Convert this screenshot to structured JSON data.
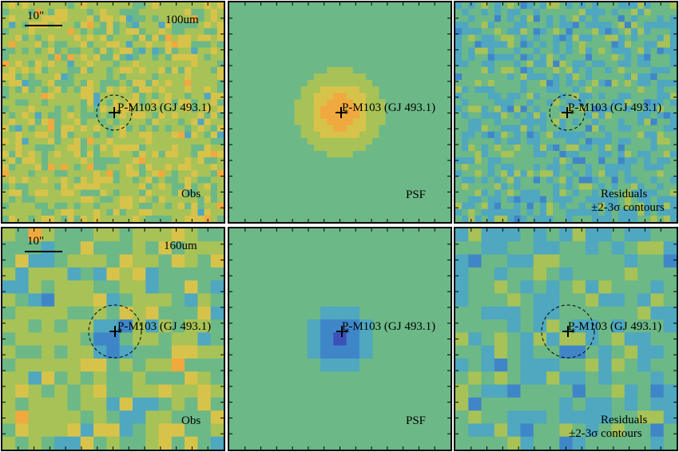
{
  "rows": [
    {
      "band": "100um",
      "scale_label": "10\"",
      "source": "P-M103 (GJ 493.1)",
      "obs_label": "Obs",
      "psf_label": "PSF",
      "resid_label_1": "Residuals",
      "resid_label_2": "±2-3σ contours"
    },
    {
      "band": "160um",
      "scale_label": "10\"",
      "source": "P-M103 (GJ 493.1)",
      "obs_label": "Obs",
      "psf_label": "PSF",
      "resid_label_1": "Residuals",
      "resid_label_2": "±2-3σ contours"
    }
  ],
  "colormap": [
    "#3b1f8f",
    "#3d4fb8",
    "#3f86c9",
    "#4fa7c0",
    "#6cb887",
    "#a7c257",
    "#d8c34a",
    "#f0a93e",
    "#ee7a30",
    "#e33a22"
  ]
}
